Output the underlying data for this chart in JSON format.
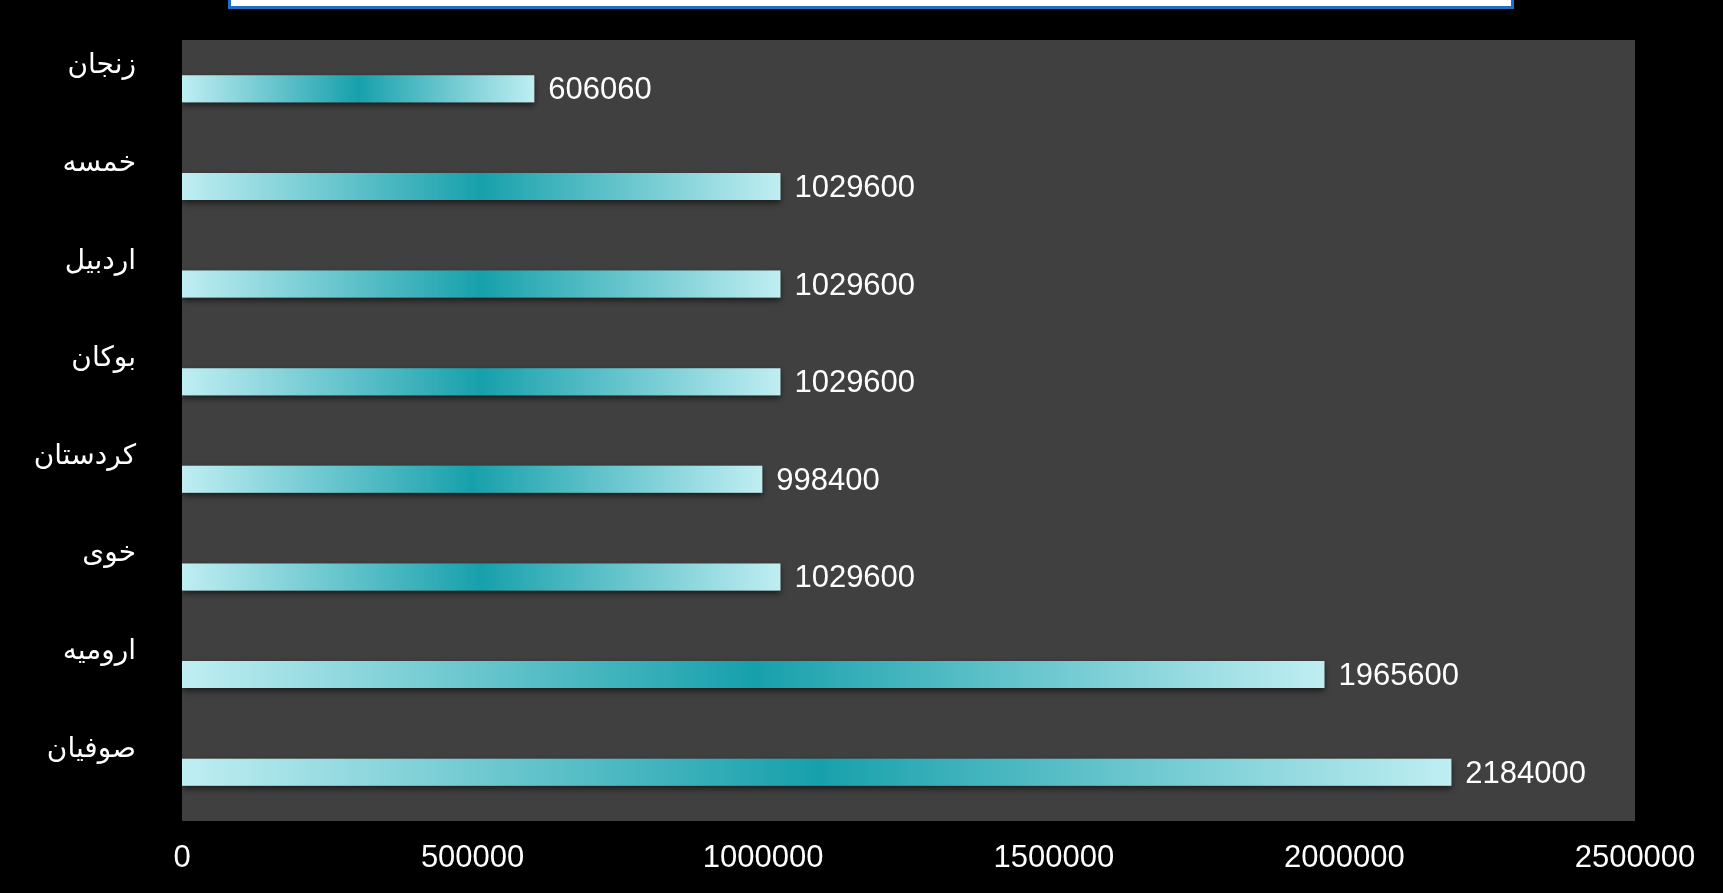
{
  "chart_data": {
    "type": "bar",
    "orientation": "horizontal",
    "categories": [
      "زنجان",
      "خمسه",
      "اردبیل",
      "بوکان",
      "کردستان",
      "خوی",
      "ارومیه",
      "صوفیان"
    ],
    "values": [
      606060,
      1029600,
      1029600,
      1029600,
      998400,
      1029600,
      1965600,
      2184000
    ],
    "color": "#17a0ab",
    "xlim": [
      0,
      2500000
    ],
    "xticks": [
      0,
      500000,
      1000000,
      1500000,
      2000000,
      2500000
    ],
    "data_labels": true,
    "grid": false
  }
}
